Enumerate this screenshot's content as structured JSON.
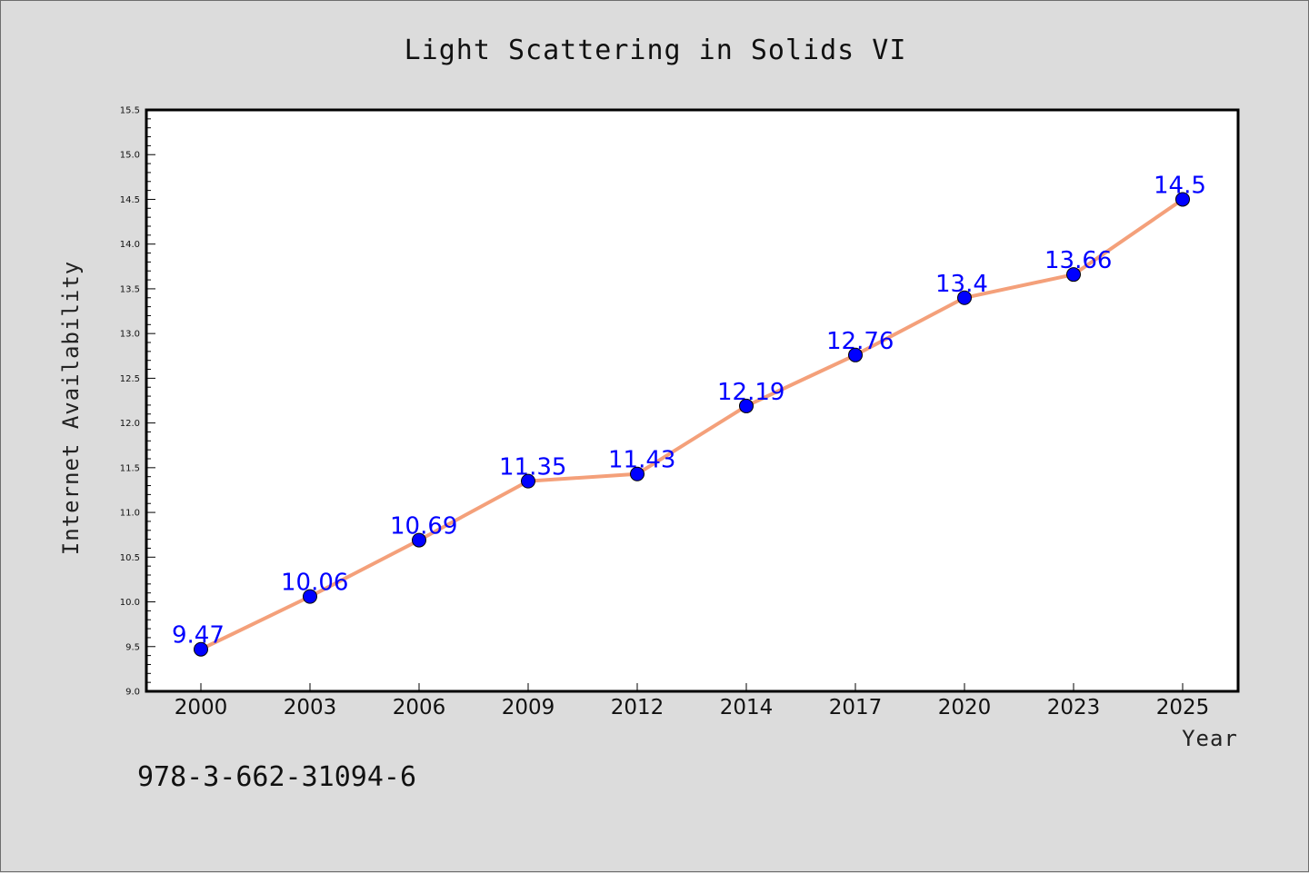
{
  "chart_data": {
    "type": "line",
    "title": "Light Scattering in Solids VI",
    "xlabel": "Year",
    "ylabel": "Internet Availability",
    "categories": [
      "2000",
      "2003",
      "2006",
      "2009",
      "2012",
      "2014",
      "2017",
      "2020",
      "2023",
      "2025"
    ],
    "series": [
      {
        "values": [
          9.47,
          10.06,
          10.69,
          11.35,
          11.43,
          12.19,
          12.76,
          13.4,
          13.66,
          14.5
        ],
        "labels": [
          "9.47",
          "10.06",
          "10.69",
          "11.35",
          "11.43",
          "12.19",
          "12.76",
          "13.4",
          "13.66",
          "14.5"
        ],
        "line_color": "#f4a07a",
        "marker_color": "#0000ff"
      }
    ],
    "ylim": [
      9.0,
      15.5
    ],
    "yticks": [
      "9.0",
      "9.5",
      "10.0",
      "10.5",
      "11.0",
      "11.5",
      "12.0",
      "12.5",
      "13.0",
      "13.5",
      "14.0",
      "14.5",
      "15.0",
      "15.5"
    ],
    "grid": false,
    "legend": "none"
  },
  "footer": {
    "isbn": "978-3-662-31094-6"
  },
  "colors": {
    "background": "#dcdcdc",
    "plot_background": "#ffffff",
    "line": "#f4a07a",
    "marker": "#0000ff",
    "data_label": "#0000ff"
  }
}
